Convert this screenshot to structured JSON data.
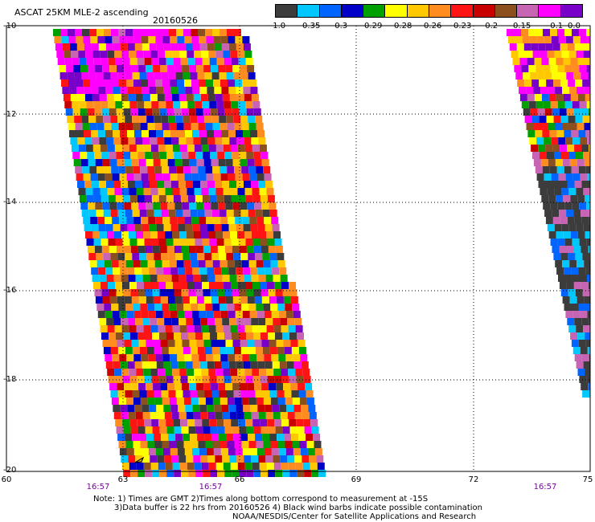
{
  "header": {
    "title": "ASCAT 25KM MLE-2 ascending",
    "date": "20160526"
  },
  "colorbar": {
    "colors": [
      "#3c3c3c",
      "#00c8ff",
      "#0064ff",
      "#0000c8",
      "#00a000",
      "#ffff00",
      "#ffc800",
      "#ff8c1e",
      "#ff1414",
      "#c80000",
      "#8c501e",
      "#c864b4",
      "#ff00ff",
      "#7800c8"
    ],
    "labels": [
      "−1.0",
      "−0.35",
      "−0.3",
      "−0.29",
      "−0.28",
      "−0.26",
      "−0.23",
      "−0.2",
      "−0.15",
      "−0.1",
      "0.0"
    ]
  },
  "map": {
    "y_labels": [
      "-10",
      "-12",
      "-14",
      "-16",
      "-18",
      "-20"
    ],
    "x_labels": [
      "60",
      "63",
      "66",
      "69",
      "72",
      "75"
    ],
    "time_labels": [
      "16:57",
      "16:57",
      "16:57"
    ],
    "lon_range": [
      60,
      75
    ],
    "lat_range": [
      -20,
      -10
    ]
  },
  "notes": {
    "line1": "Note: 1) Times are GMT 2)Times along bottom correspond to measurement at -15S",
    "line2": "3)Data buffer is 22 hrs from 20160526 4) Black wind barbs indicate possible contamination",
    "line3": "NOAA/NESDIS/Center for Satellite Applications and Research"
  }
}
